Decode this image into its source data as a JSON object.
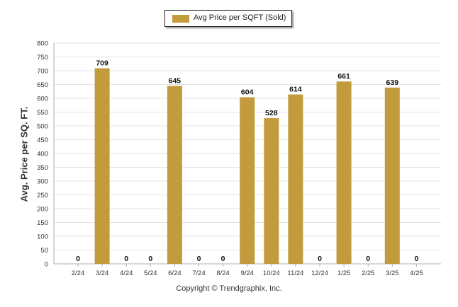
{
  "chart_data": {
    "type": "bar",
    "legend": "Avg Price per SQFT (Sold)",
    "legend_position": "top-center",
    "ylabel": "Avg. Price per SQ. FT.",
    "xlabel": "",
    "ylim": [
      0,
      800
    ],
    "yticks": [
      0,
      50,
      100,
      150,
      200,
      250,
      300,
      350,
      400,
      450,
      500,
      550,
      600,
      650,
      700,
      750,
      800
    ],
    "grid": true,
    "categories": [
      "2/24",
      "3/24",
      "4/24",
      "5/24",
      "6/24",
      "7/24",
      "8/24",
      "9/24",
      "10/24",
      "11/24",
      "12/24",
      "1/25",
      "2/25",
      "3/25",
      "4/25"
    ],
    "series": [
      {
        "name": "Avg Price per SQFT (Sold)",
        "values": [
          0,
          709,
          0,
          0,
          645,
          0,
          0,
          604,
          528,
          614,
          0,
          661,
          0,
          639,
          0
        ]
      }
    ],
    "bar_color": "#c29b3d"
  },
  "footer": {
    "copyright": "Copyright © Trendgraphix, Inc."
  }
}
